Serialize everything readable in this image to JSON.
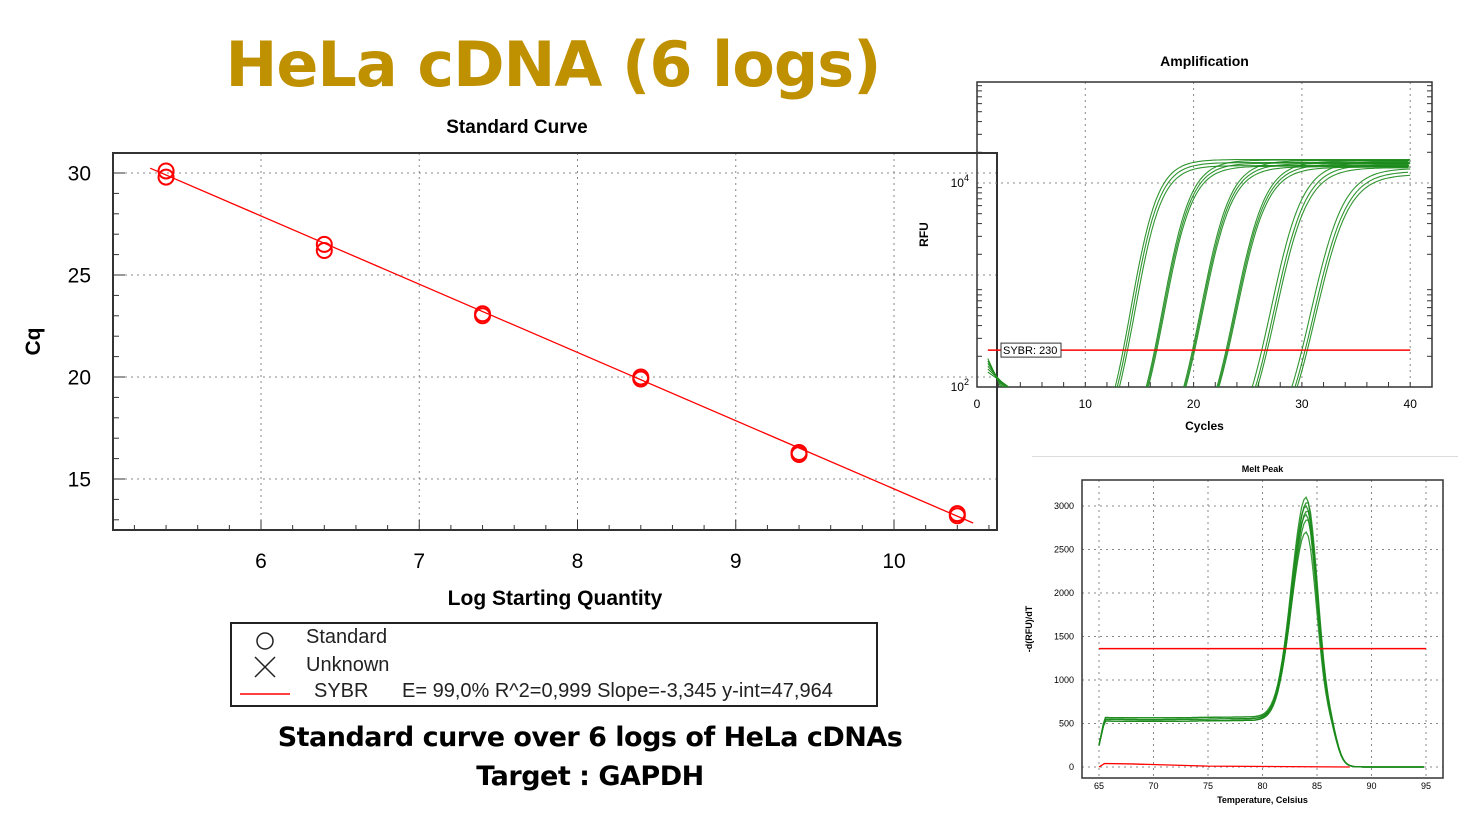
{
  "slide": {
    "title": "HeLa cDNA (6 logs)",
    "caption_line1": "Standard curve over 6 logs of HeLa cDNAs",
    "caption_line2": "Target : GAPDH",
    "title_color": "#BF9000"
  },
  "legend": {
    "standard_label": "Standard",
    "unknown_label": "Unknown",
    "series_label": "SYBR",
    "stats": "E= 99,0% R^2=0,999 Slope=-3,345 y-int=47,964",
    "standard_icon": "circle-icon",
    "unknown_icon": "x-icon"
  },
  "chart_data": [
    {
      "type": "scatter",
      "title": "Standard Curve",
      "xlabel": "Log Starting Quantity",
      "ylabel": "Cq",
      "xlim": [
        5.07,
        10.65
      ],
      "ylim": [
        12.5,
        31
      ],
      "xticks": [
        "6",
        "7",
        "8",
        "9",
        "10"
      ],
      "yticks": [
        "15",
        "20",
        "25",
        "30"
      ],
      "grid": true,
      "points": [
        {
          "x": 5.4,
          "y": 30.1
        },
        {
          "x": 5.4,
          "y": 29.8
        },
        {
          "x": 6.4,
          "y": 26.5
        },
        {
          "x": 6.4,
          "y": 26.2
        },
        {
          "x": 7.4,
          "y": 23.1
        },
        {
          "x": 7.4,
          "y": 23.0
        },
        {
          "x": 8.4,
          "y": 20.0
        },
        {
          "x": 8.4,
          "y": 19.9
        },
        {
          "x": 9.4,
          "y": 16.3
        },
        {
          "x": 9.4,
          "y": 16.2
        },
        {
          "x": 10.4,
          "y": 13.3
        },
        {
          "x": 10.4,
          "y": 13.2
        }
      ],
      "fit": {
        "slope": -3.345,
        "intercept": 47.964,
        "x_range": [
          5.3,
          10.5
        ],
        "color": "#FF0000"
      },
      "marker_color": "#FF0000"
    },
    {
      "type": "line",
      "title": "Amplification",
      "xlabel": "Cycles",
      "ylabel": "RFU",
      "xlim": [
        0,
        42
      ],
      "ylim": [
        100,
        100000
      ],
      "yscale": "log",
      "xticks": [
        "0",
        "10",
        "20",
        "30",
        "40"
      ],
      "yticks": [
        {
          "base": "10",
          "exp": "2"
        },
        {
          "base": "10",
          "exp": "4"
        }
      ],
      "grid": true,
      "threshold": {
        "value": 230,
        "label": "SYBR: 230",
        "color": "#FF0000"
      },
      "series_color": "#1A8A1A",
      "crossing_cycles": [
        [
          13.5,
          13.7,
          13.9
        ],
        [
          16.4,
          16.5,
          16.6
        ],
        [
          19.9,
          20.0,
          20.1
        ],
        [
          23.0,
          23.1,
          23.2
        ],
        [
          26.3,
          26.6,
          26.8
        ],
        [
          30.0,
          30.3,
          30.5
        ]
      ],
      "plateau_rfu": 17000
    },
    {
      "type": "line",
      "title": "Melt Peak",
      "xlabel": "Temperature, Celsius",
      "ylabel": "-d(RFU)/dT",
      "xlim": [
        64.5,
        95.5
      ],
      "ylim": [
        -50,
        3300
      ],
      "xticks": [
        "65",
        "70",
        "75",
        "80",
        "85",
        "90",
        "95"
      ],
      "yticks": [
        "0",
        "500",
        "1000",
        "1500",
        "2000",
        "2500",
        "3000"
      ],
      "grid": true,
      "threshold": {
        "value": 1360,
        "color": "#FF0000"
      },
      "series_color": "#1A8A1A",
      "peak_temperature": 84,
      "peak_heights": [
        3100,
        3050,
        3000,
        2950,
        2900,
        2850,
        2700
      ],
      "baseline": 550
    }
  ]
}
